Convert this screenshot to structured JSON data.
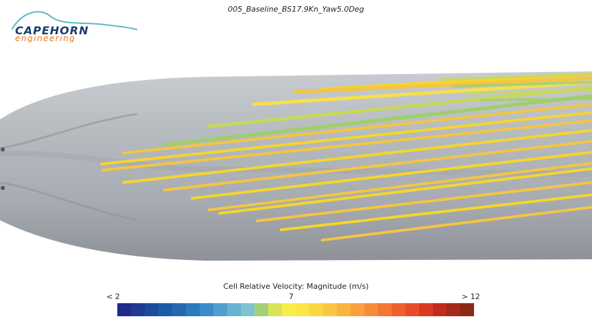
{
  "header": {
    "title": "005_Baseline_BS17.9Kn_Yaw5.0Deg"
  },
  "logo": {
    "line1": "CAPEHORN",
    "line2": "engineering",
    "accent_color": "#e87722",
    "primary_color": "#1d3c6e",
    "swoosh_color": "#5cb8c9"
  },
  "scene": {
    "hull_color": "#a9aeb4",
    "vector_colors": [
      "#f6d52b",
      "#f4c542",
      "#f7e04a",
      "#c8d85a",
      "#9fcf66"
    ]
  },
  "legend": {
    "title": "Cell Relative Velocity: Magnitude (m/s)",
    "min_label": "< 2",
    "mid_label": "7",
    "max_label": "> 12",
    "colors": [
      "#1d2b8a",
      "#1f3a93",
      "#1e4a9c",
      "#1e5aa5",
      "#2468b0",
      "#2b7bbd",
      "#3b8cc8",
      "#4fa0cf",
      "#66b3d4",
      "#7fc3cf",
      "#a3d17a",
      "#d8e35a",
      "#f6ef4b",
      "#fbe547",
      "#fbd744",
      "#fbc642",
      "#fab43f",
      "#f9a13c",
      "#f78c38",
      "#f47633",
      "#f05f2c",
      "#e84c27",
      "#d83a22",
      "#c22c1e",
      "#a5281a",
      "#8a2a15"
    ]
  }
}
